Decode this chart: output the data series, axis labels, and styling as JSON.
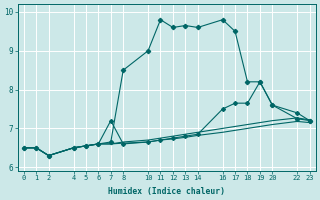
{
  "xlabel": "Humidex (Indice chaleur)",
  "bg_color": "#cce8e8",
  "grid_color": "#aacccc",
  "line_color": "#006666",
  "xlim": [
    -0.5,
    23.5
  ],
  "ylim": [
    5.9,
    10.2
  ],
  "xticks": [
    0,
    1,
    2,
    4,
    5,
    6,
    7,
    8,
    10,
    11,
    12,
    13,
    14,
    16,
    17,
    18,
    19,
    20,
    22,
    23
  ],
  "yticks": [
    6,
    7,
    8,
    9,
    10
  ],
  "line1_x": [
    0,
    1,
    2,
    4,
    5,
    6,
    7,
    8,
    10,
    11,
    12,
    13,
    14,
    16,
    17,
    18,
    19,
    20,
    22,
    23
  ],
  "line1_y": [
    6.5,
    6.5,
    6.3,
    6.5,
    6.55,
    6.6,
    6.65,
    8.5,
    9.0,
    9.8,
    9.6,
    9.65,
    9.6,
    9.8,
    9.5,
    8.2,
    8.2,
    7.6,
    7.25,
    7.2
  ],
  "line2_x": [
    0,
    1,
    2,
    4,
    5,
    6,
    7,
    8,
    10,
    11,
    12,
    13,
    14,
    16,
    17,
    18,
    19,
    20,
    22,
    23
  ],
  "line2_y": [
    6.5,
    6.5,
    6.3,
    6.5,
    6.55,
    6.6,
    7.2,
    6.6,
    6.65,
    6.7,
    6.75,
    6.8,
    6.85,
    7.5,
    7.65,
    7.65,
    8.2,
    7.6,
    7.4,
    7.2
  ],
  "line3_x": [
    0,
    1,
    2,
    4,
    5,
    6,
    7,
    8,
    10,
    11,
    12,
    13,
    14,
    16,
    17,
    18,
    19,
    20,
    22,
    23
  ],
  "line3_y": [
    6.5,
    6.5,
    6.3,
    6.5,
    6.55,
    6.6,
    6.6,
    6.65,
    6.7,
    6.75,
    6.8,
    6.85,
    6.9,
    7.0,
    7.05,
    7.1,
    7.15,
    7.2,
    7.27,
    7.22
  ],
  "line4_x": [
    0,
    1,
    2,
    4,
    5,
    6,
    7,
    8,
    10,
    11,
    12,
    13,
    14,
    16,
    17,
    18,
    19,
    20,
    22,
    23
  ],
  "line4_y": [
    6.5,
    6.5,
    6.3,
    6.5,
    6.55,
    6.6,
    6.6,
    6.62,
    6.65,
    6.7,
    6.73,
    6.77,
    6.82,
    6.9,
    6.95,
    7.0,
    7.05,
    7.1,
    7.18,
    7.15
  ]
}
